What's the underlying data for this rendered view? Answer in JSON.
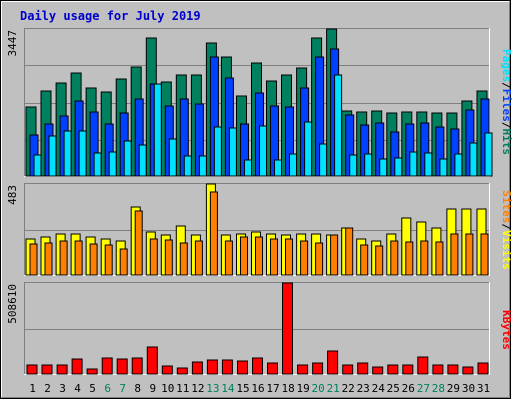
{
  "chart_data": {
    "type": "bar",
    "title": "Daily usage for July 2019",
    "categories": [
      "1",
      "2",
      "3",
      "4",
      "5",
      "6",
      "7",
      "8",
      "9",
      "10",
      "11",
      "12",
      "13",
      "14",
      "15",
      "16",
      "17",
      "18",
      "19",
      "20",
      "21",
      "22",
      "23",
      "24",
      "25",
      "26",
      "27",
      "28",
      "29",
      "30",
      "31"
    ],
    "weekend_days": [
      "6",
      "7",
      "13",
      "14",
      "20",
      "21",
      "27",
      "28"
    ],
    "colors": {
      "background": "#c0c0c0",
      "title": "#0000cc",
      "weekday_label": "#000000",
      "weekend_label": "#00805f",
      "hits": "#00805f",
      "files": "#0040ff",
      "pages": "#00e0ff",
      "visits": "#ffff00",
      "sites": "#ff8000",
      "kbytes": "#ff0000"
    },
    "panels": [
      {
        "id": "hits-files-pages",
        "ymax_label": "3447",
        "ylim": [
          0,
          3447
        ],
        "legend": [
          "Pages",
          "Files",
          "Hits"
        ],
        "series": [
          {
            "name": "Hits",
            "color": "#00805f",
            "values": [
              1610,
              2000,
              2190,
              2410,
              2060,
              1960,
              2280,
              2560,
              3230,
              2200,
              2360,
              2360,
              3110,
              2780,
              1880,
              2650,
              2230,
              2380,
              2530,
              3230,
              3447,
              1520,
              1500,
              1520,
              1480,
              1500,
              1500,
              1480,
              1480,
              1750,
              1990
            ]
          },
          {
            "name": "Files",
            "color": "#0040ff",
            "values": [
              970,
              1220,
              1400,
              1770,
              1490,
              1210,
              1480,
              1810,
              2150,
              1650,
              1800,
              1690,
              2780,
              2300,
              1220,
              1950,
              1640,
              1610,
              2070,
              2800,
              2970,
              1420,
              1190,
              1240,
              1040,
              1230,
              1250,
              1160,
              1100,
              1550,
              1800
            ]
          },
          {
            "name": "Pages",
            "color": "#00e0ff",
            "values": [
              500,
              930,
              1060,
              1060,
              530,
              570,
              820,
              720,
              2160,
              870,
              480,
              460,
              1160,
              1120,
              380,
              1170,
              380,
              520,
              1270,
              740,
              2380,
              500,
              510,
              390,
              420,
              560,
              530,
              400,
              510,
              770,
              1010
            ]
          }
        ]
      },
      {
        "id": "visits-sites",
        "ymax_label": "483",
        "ylim": [
          0,
          483
        ],
        "legend": [
          "Sites",
          "Visits"
        ],
        "series": [
          {
            "name": "Visits",
            "color": "#ffff00",
            "values": [
              190,
              200,
              220,
              220,
              200,
              190,
              180,
              360,
              230,
              210,
              260,
              210,
              483,
              210,
              220,
              230,
              220,
              210,
              220,
              220,
              210,
              250,
              190,
              180,
              220,
              300,
              280,
              250,
              350,
              350,
              350
            ]
          },
          {
            "name": "Sites",
            "color": "#ff8000",
            "values": [
              165,
              170,
              180,
              180,
              165,
              160,
              140,
              340,
              190,
              185,
              170,
              180,
              440,
              180,
              200,
              200,
              190,
              190,
              180,
              170,
              210,
              250,
              160,
              155,
              180,
              175,
              180,
              175,
              220,
              220,
              220
            ]
          }
        ]
      },
      {
        "id": "kbytes",
        "ymax_label": "508610",
        "ylim": [
          0,
          508610
        ],
        "legend": [
          "KBytes"
        ],
        "series": [
          {
            "name": "KBytes",
            "color": "#ff0000",
            "values": [
              48000,
              48000,
              50000,
              82000,
              27000,
              90000,
              82000,
              90000,
              150000,
              45000,
              36000,
              68000,
              80000,
              78000,
              70000,
              88000,
              60000,
              508610,
              50000,
              62000,
              128000,
              50000,
              60000,
              40000,
              50000,
              50000,
              95000,
              50000,
              48000,
              40000,
              60000
            ]
          }
        ]
      }
    ]
  }
}
